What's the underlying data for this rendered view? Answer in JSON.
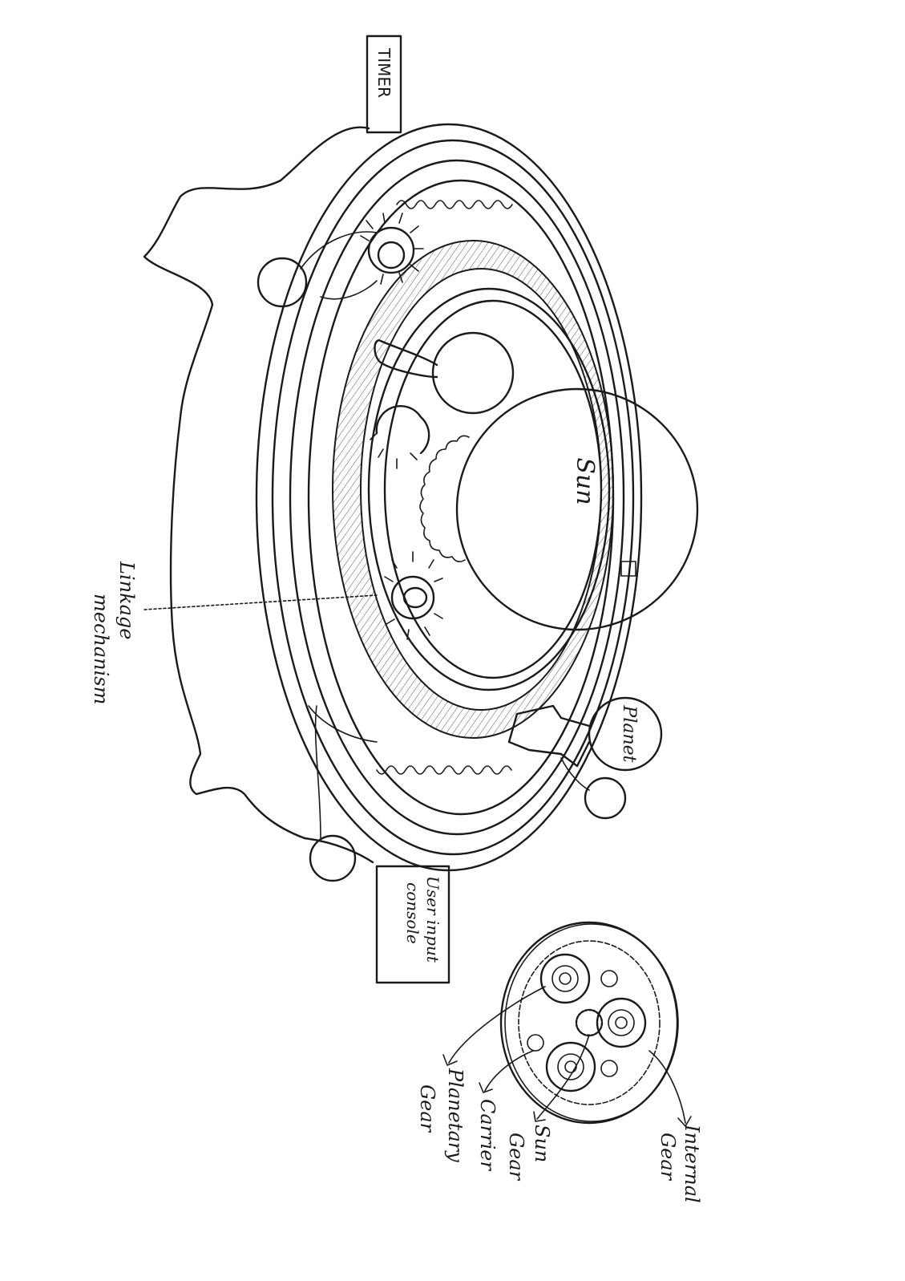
{
  "labels": {
    "timer": "TIMER",
    "user_input_line1": "User input",
    "user_input_line2": "console",
    "sun": "Sun",
    "planet": "Planet",
    "linkage_line1": "Linkage",
    "linkage_line2": "mechanism",
    "internal_line1": "Internal",
    "internal_line2": "Gear",
    "sun_gear_line1": "Sun",
    "sun_gear_line2": "Gear",
    "carrier": "Carrier",
    "planetary_line1": "Planetary",
    "planetary_line2": "Gear"
  },
  "colors": {
    "ink": "#1a1a1a",
    "paper": "#ffffff"
  }
}
